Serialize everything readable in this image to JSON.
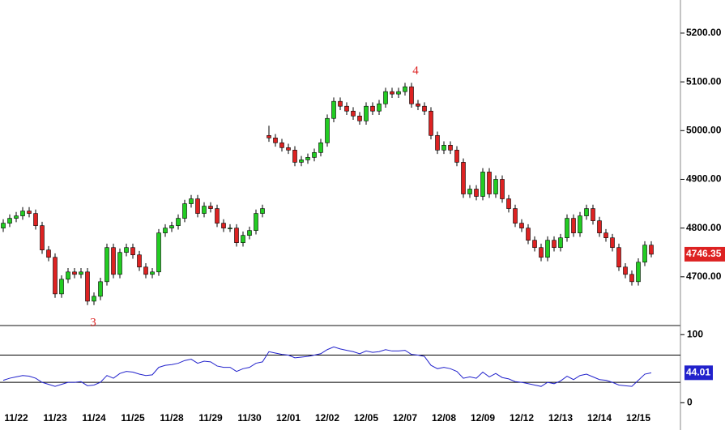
{
  "chart_data": [
    {
      "type": "candlestick",
      "categories": [
        null,
        null,
        "11/22",
        null,
        null,
        null,
        null,
        null,
        "11/23",
        null,
        null,
        null,
        null,
        null,
        "11/24",
        null,
        null,
        null,
        null,
        null,
        "11/25",
        null,
        null,
        null,
        null,
        null,
        "11/28",
        null,
        null,
        null,
        null,
        null,
        "11/29",
        null,
        null,
        null,
        null,
        null,
        "11/30",
        null,
        null,
        null,
        null,
        null,
        "12/01",
        null,
        null,
        null,
        null,
        null,
        "12/02",
        null,
        null,
        null,
        null,
        null,
        "12/05",
        null,
        null,
        null,
        null,
        null,
        "12/07",
        null,
        null,
        null,
        null,
        null,
        "12/08",
        null,
        null,
        null,
        null,
        null,
        "12/09",
        null,
        null,
        null,
        null,
        null,
        "12/12",
        null,
        null,
        null,
        null,
        null,
        "12/13",
        null,
        null,
        null,
        null,
        null,
        "12/14",
        null,
        null,
        null,
        null,
        null,
        "12/15",
        null,
        null
      ],
      "open": [
        4800,
        4810,
        4820,
        4825,
        4835,
        4830,
        4805,
        4755,
        4740,
        4665,
        4695,
        4710,
        4705,
        4710,
        4650,
        4660,
        4690,
        4760,
        4705,
        4750,
        4760,
        4745,
        4720,
        4705,
        4710,
        4790,
        4800,
        4805,
        4820,
        4850,
        4860,
        4830,
        4845,
        4840,
        4810,
        4800,
        4800,
        4770,
        4785,
        4795,
        4830,
        4990,
        4985,
        4975,
        4965,
        4960,
        4935,
        4940,
        4945,
        4955,
        4975,
        5025,
        5060,
        5050,
        5040,
        5030,
        5020,
        5050,
        5040,
        5055,
        5080,
        5075,
        5080,
        5090,
        5055,
        5050,
        5040,
        4990,
        4960,
        4970,
        4960,
        4935,
        4870,
        4880,
        4865,
        4915,
        4870,
        4900,
        4860,
        4840,
        4810,
        4800,
        4775,
        4760,
        4740,
        4775,
        4760,
        4780,
        4820,
        4790,
        4825,
        4840,
        4815,
        4790,
        4780,
        4760,
        4720,
        4705,
        4690,
        4730,
        4765
      ],
      "high": [
        4818,
        4828,
        4833,
        4843,
        4843,
        4838,
        4813,
        4763,
        4748,
        4703,
        4718,
        4718,
        4718,
        4718,
        4668,
        4698,
        4768,
        4768,
        4758,
        4768,
        4768,
        4753,
        4728,
        4718,
        4798,
        4808,
        4813,
        4828,
        4858,
        4868,
        4868,
        4853,
        4853,
        4848,
        4818,
        4808,
        4808,
        4793,
        4803,
        4838,
        4848,
        5010,
        4993,
        4983,
        4973,
        4968,
        4948,
        4953,
        4963,
        4983,
        5033,
        5068,
        5068,
        5058,
        5048,
        5038,
        5058,
        5058,
        5063,
        5088,
        5088,
        5088,
        5098,
        5098,
        5063,
        5058,
        5048,
        4998,
        4978,
        4978,
        4968,
        4943,
        4888,
        4888,
        4923,
        4923,
        4908,
        4908,
        4868,
        4848,
        4818,
        4808,
        4783,
        4768,
        4783,
        4783,
        4788,
        4828,
        4828,
        4833,
        4848,
        4848,
        4823,
        4798,
        4788,
        4768,
        4728,
        4713,
        4738,
        4773,
        4773
      ],
      "low": [
        4792,
        4802,
        4812,
        4817,
        4822,
        4797,
        4747,
        4732,
        4657,
        4657,
        4687,
        4697,
        4697,
        4642,
        4642,
        4652,
        4682,
        4697,
        4697,
        4742,
        4737,
        4712,
        4697,
        4697,
        4702,
        4782,
        4792,
        4797,
        4812,
        4842,
        4822,
        4822,
        4832,
        4802,
        4792,
        4792,
        4762,
        4762,
        4777,
        4787,
        4822,
        4977,
        4967,
        4957,
        4952,
        4927,
        4927,
        4932,
        4937,
        4947,
        4967,
        5017,
        5042,
        5032,
        5022,
        5012,
        5012,
        5032,
        5032,
        5047,
        5067,
        5067,
        5072,
        5047,
        5042,
        5032,
        4982,
        4952,
        4952,
        4952,
        4927,
        4862,
        4862,
        4857,
        4857,
        4862,
        4862,
        4852,
        4832,
        4802,
        4792,
        4767,
        4752,
        4732,
        4732,
        4752,
        4752,
        4772,
        4782,
        4782,
        4817,
        4807,
        4782,
        4772,
        4752,
        4712,
        4697,
        4682,
        4682,
        4722,
        4740
      ],
      "close": [
        4810,
        4820,
        4825,
        4835,
        4830,
        4805,
        4755,
        4740,
        4665,
        4695,
        4710,
        4705,
        4710,
        4650,
        4660,
        4690,
        4760,
        4705,
        4750,
        4760,
        4745,
        4720,
        4705,
        4710,
        4790,
        4800,
        4805,
        4820,
        4850,
        4860,
        4830,
        4845,
        4840,
        4810,
        4800,
        4800,
        4770,
        4785,
        4795,
        4830,
        4840,
        4985,
        4975,
        4965,
        4960,
        4935,
        4940,
        4945,
        4955,
        4975,
        5025,
        5060,
        5050,
        5040,
        5030,
        5020,
        5050,
        5040,
        5055,
        5080,
        5075,
        5080,
        5090,
        5055,
        5050,
        5040,
        4990,
        4960,
        4970,
        4960,
        4935,
        4870,
        4880,
        4865,
        4915,
        4870,
        4900,
        4860,
        4840,
        4810,
        4800,
        4775,
        4760,
        4740,
        4775,
        4760,
        4780,
        4820,
        4790,
        4825,
        4840,
        4815,
        4790,
        4780,
        4760,
        4720,
        4705,
        4690,
        4730,
        4765,
        4746.35
      ],
      "up_color": "#22cc22",
      "down_color": "#dd2222",
      "ylim": [
        4600,
        5268
      ],
      "yticks": [
        {
          "value": 4700,
          "label": "4700.00"
        },
        {
          "value": 4800,
          "label": "4800.00"
        },
        {
          "value": 4900,
          "label": "4900.00"
        },
        {
          "value": 5000,
          "label": "5000.00"
        },
        {
          "value": 5100,
          "label": "5100.00"
        },
        {
          "value": 5200,
          "label": "5200.00"
        }
      ],
      "annotations": [
        "3",
        "4"
      ]
    },
    {
      "type": "line",
      "values": [
        33,
        36,
        38,
        40,
        39,
        36,
        30,
        27,
        24,
        27,
        30,
        30,
        31,
        25,
        26,
        30,
        40,
        36,
        43,
        46,
        45,
        42,
        40,
        41,
        52,
        55,
        56,
        58,
        62,
        64,
        58,
        61,
        60,
        54,
        52,
        52,
        46,
        50,
        52,
        58,
        60,
        75,
        73,
        71,
        70,
        66,
        67,
        68,
        70,
        72,
        78,
        82,
        79,
        77,
        75,
        72,
        76,
        74,
        75,
        78,
        76,
        76,
        77,
        71,
        70,
        68,
        55,
        50,
        52,
        50,
        46,
        36,
        38,
        36,
        45,
        38,
        43,
        37,
        35,
        31,
        30,
        28,
        26,
        24,
        30,
        28,
        32,
        39,
        34,
        40,
        42,
        38,
        34,
        33,
        30,
        26,
        25,
        24,
        33,
        42,
        44.01
      ],
      "color": "#2222cc",
      "ylim": [
        -21,
        111
      ],
      "yticks": [
        0,
        100
      ],
      "hlines": [
        30,
        70
      ]
    }
  ]
}
